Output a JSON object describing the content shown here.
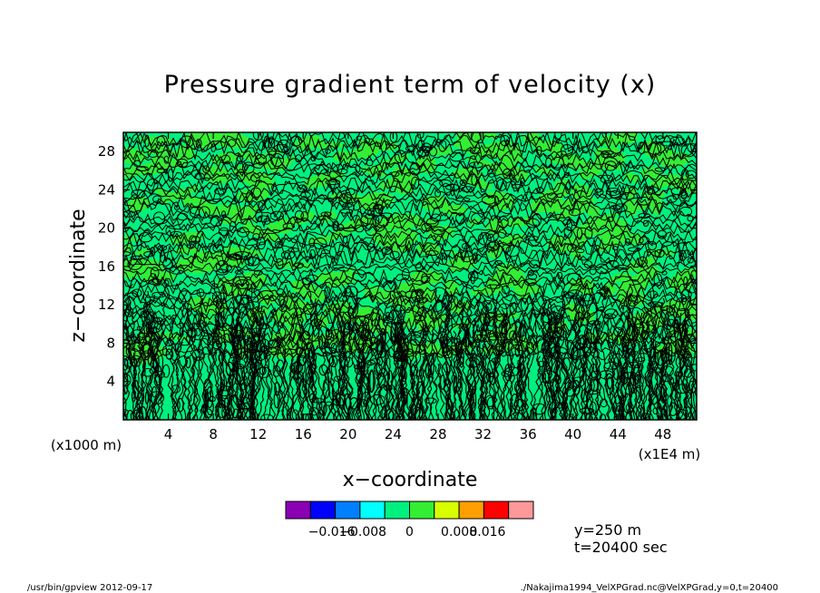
{
  "chart_data": {
    "type": "heatmap",
    "title": "Pressure gradient term of velocity (x)",
    "xlabel": "x−coordinate",
    "ylabel": "z−coordinate",
    "x_unit_label": "(x1E4 m)",
    "y_unit_label": "(x1000 m)",
    "x_ticks": [
      4,
      8,
      12,
      16,
      20,
      24,
      28,
      32,
      36,
      40,
      44,
      48
    ],
    "y_ticks": [
      4,
      8,
      12,
      16,
      20,
      24,
      28
    ],
    "xlim": [
      0,
      51
    ],
    "ylim": [
      0,
      30
    ],
    "colorbar": {
      "colors": [
        "#8a00b4",
        "#0000ff",
        "#0080ff",
        "#00ffff",
        "#00f080",
        "#33ee33",
        "#d8ff00",
        "#ffa000",
        "#ff0000",
        "#ff9999"
      ],
      "labels": [
        "−0.016",
        "−0.008",
        "0",
        "0.008",
        "0.016"
      ],
      "levels": [
        -0.016,
        -0.008,
        0,
        0.008,
        0.016
      ],
      "dominant_colors": [
        "#00f080",
        "#33ee33"
      ]
    },
    "annotations": [
      "y=250 m",
      "t=20400 sec"
    ]
  },
  "footer": {
    "left": "/usr/bin/gpview   2012-09-17",
    "right": "./Nakajima1994_VelXPGrad.nc@VelXPGrad,y=0,t=20400"
  }
}
